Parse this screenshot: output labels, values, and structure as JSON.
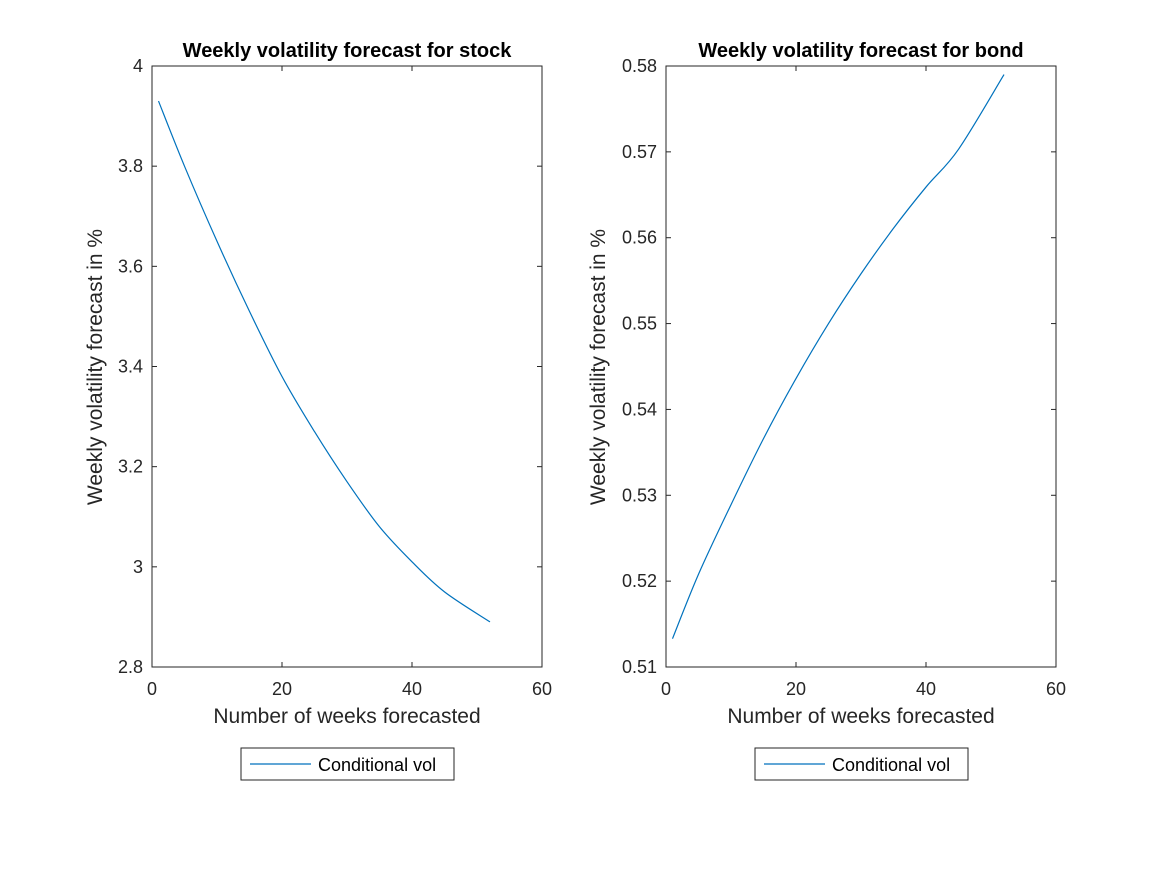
{
  "chart_data": [
    {
      "type": "line",
      "title": "Weekly volatility forecast for stock",
      "xlabel": "Number of weeks forecasted",
      "ylabel": "Weekly volatility forecast in %",
      "xlim": [
        0,
        60
      ],
      "ylim": [
        2.8,
        4
      ],
      "xticks": [
        "0",
        "20",
        "40",
        "60"
      ],
      "yticks": [
        "2.8",
        "3",
        "3.2",
        "3.4",
        "3.6",
        "3.8",
        "4"
      ],
      "grid": false,
      "legend_position": "bottom-outside",
      "series": [
        {
          "name": "Conditional vol",
          "color": "#0072BD",
          "x": [
            1,
            5,
            10,
            15,
            20,
            25,
            30,
            35,
            40,
            45,
            52
          ],
          "y": [
            3.93,
            3.8,
            3.65,
            3.51,
            3.38,
            3.27,
            3.17,
            3.08,
            3.01,
            2.95,
            2.89
          ]
        }
      ]
    },
    {
      "type": "line",
      "title": "Weekly volatility forecast for bond",
      "xlabel": "Number of weeks forecasted",
      "ylabel": "Weekly volatility forecast in %",
      "xlim": [
        0,
        60
      ],
      "ylim": [
        0.51,
        0.58
      ],
      "xticks": [
        "0",
        "20",
        "40",
        "60"
      ],
      "yticks": [
        "0.51",
        "0.52",
        "0.53",
        "0.54",
        "0.55",
        "0.56",
        "0.57",
        "0.58"
      ],
      "grid": false,
      "legend_position": "bottom-outside",
      "series": [
        {
          "name": "Conditional vol",
          "color": "#0072BD",
          "x": [
            1,
            5,
            10,
            15,
            20,
            25,
            30,
            35,
            40,
            45,
            52
          ],
          "y": [
            0.5133,
            0.5208,
            0.5289,
            0.5366,
            0.5436,
            0.55,
            0.5558,
            0.5611,
            0.5659,
            0.5703,
            0.579
          ]
        }
      ]
    }
  ]
}
